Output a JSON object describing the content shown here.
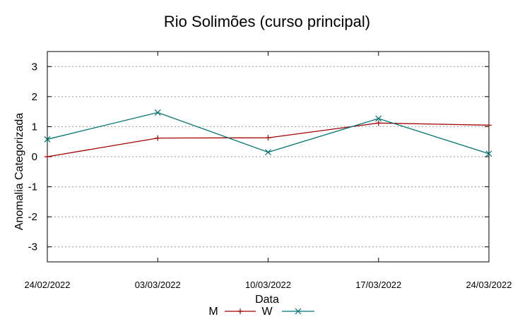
{
  "chart_data": {
    "type": "line",
    "title": "Rio Solimões (curso principal)",
    "xlabel": "Data",
    "ylabel": "Anomalia Categorizada",
    "categories": [
      "24/02/2022",
      "03/03/2022",
      "10/03/2022",
      "17/03/2022",
      "24/03/2022"
    ],
    "ylim": [
      -3.5,
      3.5
    ],
    "yticks": [
      -3,
      -2,
      -1,
      0,
      1,
      2,
      3
    ],
    "ytick_labels": [
      "-3",
      "-2",
      "-1",
      "0",
      "1",
      "2",
      "3"
    ],
    "grid": true,
    "legend_position": "bottom",
    "series": [
      {
        "name": "M",
        "color": "#a00000",
        "marker": "plus",
        "values": [
          0.0,
          0.62,
          0.63,
          1.12,
          1.05
        ]
      },
      {
        "name": "W",
        "color": "#007373",
        "marker": "cross",
        "values": [
          0.58,
          1.47,
          0.15,
          1.27,
          0.1
        ]
      }
    ]
  }
}
